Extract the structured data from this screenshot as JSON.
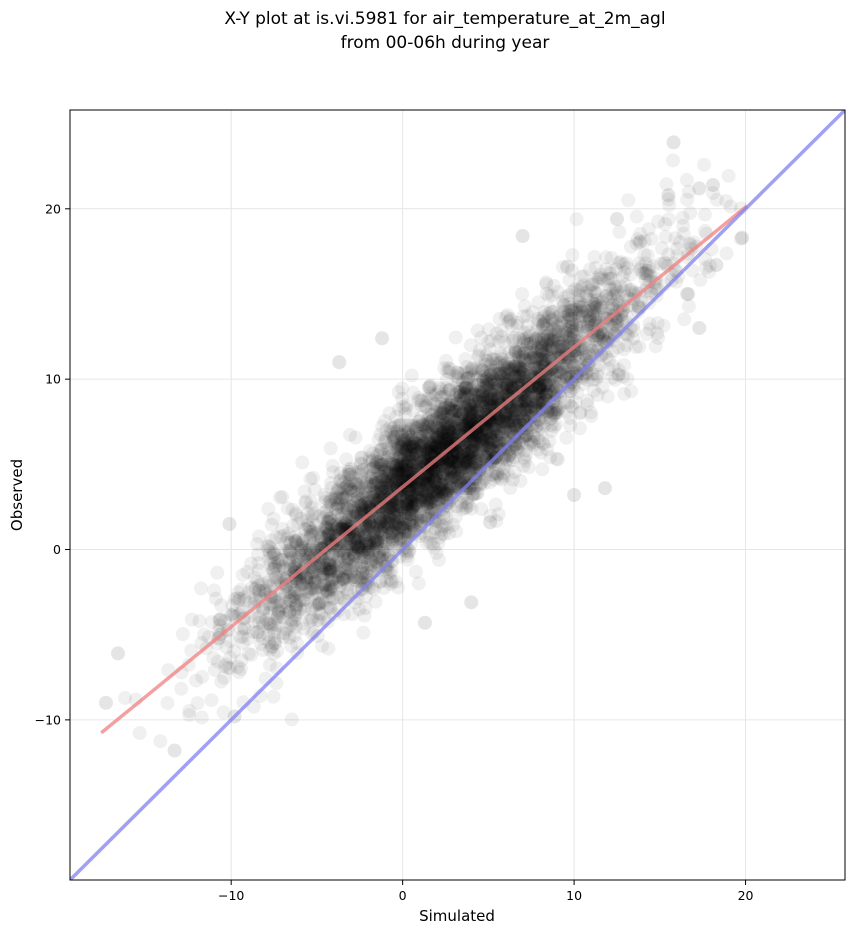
{
  "chart_data": {
    "type": "scatter",
    "title_lines": [
      "X-Y plot at is.vi.5981 for air_temperature_at_2m_agl",
      "from 00-06h during year"
    ],
    "xlabel": "Simulated",
    "ylabel": "Observed",
    "xlim": [
      -19.4,
      25.8
    ],
    "ylim": [
      -19.4,
      25.8
    ],
    "xticks": [
      -10,
      0,
      10,
      20
    ],
    "yticks": [
      -10,
      0,
      10,
      20
    ],
    "xtick_labels": [
      "−10",
      "0",
      "10",
      "20"
    ],
    "ytick_labels": [
      "−10",
      "0",
      "10",
      "20"
    ],
    "grid": true,
    "legend": "none",
    "point_color": "#000000",
    "point_alpha": 0.06,
    "lines": [
      {
        "role": "regression",
        "color": "#f08080",
        "x": [
          -17.5,
          20
        ],
        "y": [
          -10.7,
          20.1
        ]
      },
      {
        "role": "one-to-one",
        "color": "#8080f0",
        "x": [
          -19.4,
          25.8
        ],
        "y": [
          -19.4,
          25.8
        ]
      }
    ],
    "cloud": {
      "n_points": 5000,
      "x_range": [
        -17.5,
        20
      ],
      "x_mean": 2.5,
      "x_std": 5.5,
      "slope": 0.82,
      "intercept": 3.6,
      "residual_std": 2.0
    },
    "outliers": [
      {
        "x": 15.8,
        "y": 23.9
      },
      {
        "x": 18.1,
        "y": 21.4
      },
      {
        "x": 17.3,
        "y": 21.2
      },
      {
        "x": 15.5,
        "y": 20.8
      },
      {
        "x": 19.8,
        "y": 18.3
      },
      {
        "x": 18.3,
        "y": 16.7
      },
      {
        "x": 12.5,
        "y": 19.4
      },
      {
        "x": 17.3,
        "y": 13.0
      },
      {
        "x": 11.8,
        "y": 3.6
      },
      {
        "x": 10.0,
        "y": 3.2
      },
      {
        "x": 1.3,
        "y": -4.3
      },
      {
        "x": -13.3,
        "y": -11.8
      },
      {
        "x": -17.3,
        "y": -9.0
      },
      {
        "x": -16.6,
        "y": -6.1
      },
      {
        "x": -10.1,
        "y": 1.5
      },
      {
        "x": -3.7,
        "y": 11.0
      },
      {
        "x": -1.2,
        "y": 12.4
      },
      {
        "x": 4.0,
        "y": -3.1
      },
      {
        "x": 7.0,
        "y": 18.4
      },
      {
        "x": 9.6,
        "y": 16.6
      },
      {
        "x": -9.8,
        "y": -9.8
      },
      {
        "x": 14.2,
        "y": 16.2
      },
      {
        "x": 16.6,
        "y": 15.0
      },
      {
        "x": 5.1,
        "y": 1.6
      }
    ]
  }
}
